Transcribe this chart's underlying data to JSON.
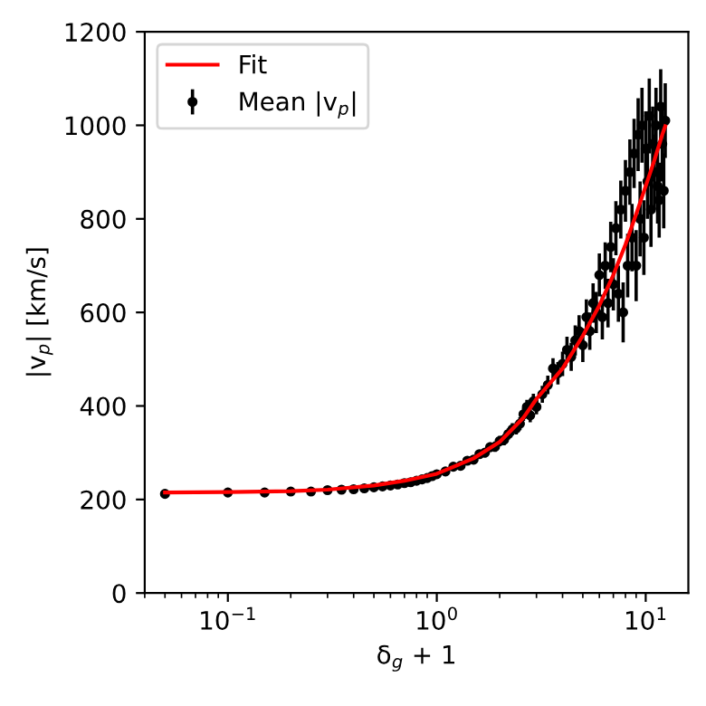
{
  "chart_data": {
    "type": "scatter",
    "xlabel": "δ$_{g}$ + 1",
    "ylabel": "|v$_{p}$| [km/s]",
    "log": "x",
    "xlim": [
      0.04,
      16
    ],
    "ylim": [
      0,
      1200
    ],
    "xticks": [
      {
        "value": 0.1,
        "label": "10$^{−1}$"
      },
      {
        "value": 1,
        "label": "10$^{0}$"
      },
      {
        "value": 10,
        "label": "10$^{1}$"
      }
    ],
    "yticks": [
      0,
      200,
      400,
      600,
      800,
      1000,
      1200
    ],
    "grid": false,
    "legend": "top left",
    "series": [
      {
        "name": "Fit",
        "type": "line",
        "color": "#ff0000",
        "marker": "none",
        "line_style": "solid",
        "x": [
          0.05,
          0.1,
          0.2,
          0.3,
          0.5,
          0.7,
          1,
          1.5,
          2,
          2.6,
          3,
          4,
          5,
          6,
          7,
          8,
          9,
          10,
          11,
          12,
          12.4
        ],
        "values": [
          215,
          216,
          218,
          221,
          230,
          240,
          255,
          288,
          323,
          375,
          415,
          480,
          550,
          615,
          680,
          745,
          810,
          870,
          925,
          980,
          998
        ]
      },
      {
        "name": "Mean |v$_{p}$|",
        "color": "#000000",
        "marker": "circle",
        "x": [
          0.05,
          0.1,
          0.15,
          0.2,
          0.25,
          0.3,
          0.35,
          0.4,
          0.45,
          0.5,
          0.55,
          0.6,
          0.65,
          0.7,
          0.75,
          0.8,
          0.85,
          0.9,
          0.95,
          1.0,
          1.1,
          1.2,
          1.3,
          1.4,
          1.5,
          1.6,
          1.7,
          1.8,
          1.9,
          2.0,
          2.1,
          2.2,
          2.3,
          2.4,
          2.5,
          2.6,
          2.7,
          2.8,
          2.9,
          3.0,
          3.2,
          3.4,
          3.6,
          3.8,
          4.0,
          4.2,
          4.4,
          4.6,
          4.8,
          5.0,
          5.2,
          5.4,
          5.6,
          5.8,
          6.0,
          6.2,
          6.4,
          6.6,
          6.8,
          7.0,
          7.2,
          7.4,
          7.6,
          7.8,
          8.0,
          8.2,
          8.4,
          8.6,
          8.8,
          9.0,
          9.2,
          9.4,
          9.6,
          9.8,
          10.0,
          10.2,
          10.4,
          10.6,
          10.8,
          11.0,
          11.2,
          11.4,
          11.6,
          11.8,
          12.0,
          12.2,
          12.4
        ],
        "values": [
          212,
          215,
          215,
          217,
          217,
          220,
          221,
          222,
          224,
          226,
          228,
          230,
          232,
          235,
          237,
          240,
          243,
          246,
          250,
          254,
          260,
          270,
          272,
          283,
          285,
          297,
          300,
          312,
          313,
          325,
          328,
          340,
          350,
          352,
          362,
          382,
          398,
          380,
          410,
          398,
          425,
          445,
          480,
          470,
          490,
          520,
          505,
          540,
          560,
          530,
          590,
          560,
          620,
          600,
          680,
          590,
          700,
          620,
          740,
          660,
          780,
          640,
          820,
          600,
          860,
          700,
          900,
          760,
          940,
          700,
          980,
          800,
          1000,
          760,
          950,
          880,
          1020,
          820,
          960,
          900,
          1000,
          870,
          840,
          1040,
          960,
          860,
          1010
        ],
        "errors": [
          5,
          5,
          5,
          5,
          5,
          5,
          5,
          5,
          5,
          5,
          5,
          5,
          5,
          5,
          5,
          5,
          5,
          5,
          6,
          6,
          7,
          7,
          8,
          8,
          9,
          9,
          10,
          10,
          11,
          11,
          12,
          12,
          13,
          13,
          14,
          14,
          15,
          15,
          16,
          16,
          18,
          20,
          22,
          24,
          26,
          28,
          30,
          32,
          34,
          36,
          38,
          40,
          42,
          44,
          46,
          48,
          50,
          52,
          54,
          56,
          58,
          60,
          62,
          64,
          66,
          68,
          70,
          72,
          74,
          76,
          78,
          80,
          80,
          80,
          80,
          80,
          80,
          80,
          80,
          80,
          80,
          80,
          80,
          80,
          80,
          80,
          80
        ]
      }
    ]
  }
}
